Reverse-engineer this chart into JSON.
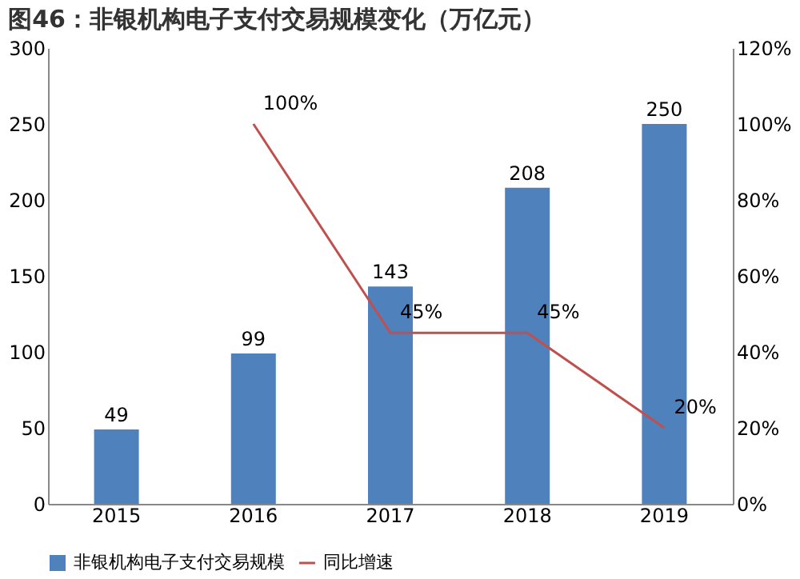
{
  "chart_data": {
    "type": "bar",
    "title": "图46：非银机构电子支付交易规模变化（万亿元）",
    "categories": [
      "2015",
      "2016",
      "2017",
      "2018",
      "2019"
    ],
    "series": [
      {
        "name": "非银机构电子支付交易规模",
        "color": "#4f81bd",
        "values": [
          49,
          99,
          143,
          208,
          250
        ],
        "data_labels": true
      },
      {
        "name": "同比增速",
        "type": "line",
        "axis": "y2",
        "color": "#c0504d",
        "values": [
          null,
          100,
          45,
          45,
          20
        ],
        "value_labels": [
          null,
          "100%",
          "45%",
          "45%",
          "20%"
        ]
      }
    ],
    "ylim": [
      0,
      300
    ],
    "yticks": [
      0,
      50,
      100,
      150,
      200,
      250,
      300
    ],
    "y2lim": [
      0,
      120
    ],
    "y2ticks": [
      {
        "value": 0,
        "label": "0%"
      },
      {
        "value": 20,
        "label": "20%"
      },
      {
        "value": 40,
        "label": "40%"
      },
      {
        "value": 60,
        "label": "60%"
      },
      {
        "value": 80,
        "label": "80%"
      },
      {
        "value": 100,
        "label": "100%"
      },
      {
        "value": 120,
        "label": "120%"
      }
    ],
    "grid": false,
    "legend": "bottom",
    "marker": "none"
  }
}
